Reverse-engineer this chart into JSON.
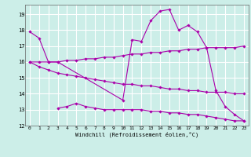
{
  "title": "",
  "xlabel": "Windchill (Refroidissement éolien,°C)",
  "background_color": "#cceee8",
  "grid_color": "#ffffff",
  "line_color": "#aa00aa",
  "xlim": [
    -0.5,
    23.5
  ],
  "ylim": [
    12,
    19.6
  ],
  "yticks": [
    12,
    13,
    14,
    15,
    16,
    17,
    18,
    19
  ],
  "xticks": [
    0,
    1,
    2,
    3,
    4,
    5,
    6,
    7,
    8,
    9,
    10,
    11,
    12,
    13,
    14,
    15,
    16,
    17,
    18,
    19,
    20,
    21,
    22,
    23
  ],
  "lines": [
    {
      "x": [
        0,
        1,
        2,
        3,
        10,
        11,
        12,
        13,
        14,
        15,
        16,
        17,
        18,
        19,
        20,
        21,
        22,
        23
      ],
      "y": [
        17.9,
        17.5,
        16.0,
        16.0,
        13.6,
        17.4,
        17.3,
        18.6,
        19.2,
        19.3,
        18.0,
        18.3,
        17.9,
        16.9,
        14.2,
        13.2,
        12.7,
        12.3
      ]
    },
    {
      "x": [
        0,
        1,
        2,
        3,
        4,
        5,
        6,
        7,
        8,
        9,
        10,
        11,
        12,
        13,
        14,
        15,
        16,
        17,
        18,
        19,
        20,
        21,
        22,
        23
      ],
      "y": [
        16.0,
        16.0,
        16.0,
        16.0,
        16.1,
        16.1,
        16.2,
        16.2,
        16.3,
        16.3,
        16.4,
        16.5,
        16.5,
        16.6,
        16.6,
        16.7,
        16.7,
        16.8,
        16.8,
        16.9,
        16.9,
        16.9,
        16.9,
        17.0
      ]
    },
    {
      "x": [
        0,
        1,
        2,
        3,
        4,
        5,
        6,
        7,
        8,
        9,
        10,
        11,
        12,
        13,
        14,
        15,
        16,
        17,
        18,
        19,
        20,
        21,
        22,
        23
      ],
      "y": [
        16.0,
        15.7,
        15.5,
        15.3,
        15.2,
        15.1,
        15.0,
        14.9,
        14.8,
        14.7,
        14.6,
        14.6,
        14.5,
        14.5,
        14.4,
        14.3,
        14.3,
        14.2,
        14.2,
        14.1,
        14.1,
        14.1,
        14.0,
        14.0
      ]
    },
    {
      "x": [
        3,
        4,
        5,
        6,
        7,
        8,
        9,
        10,
        11,
        12,
        13,
        14,
        15,
        16,
        17,
        18,
        19,
        20,
        21,
        22,
        23
      ],
      "y": [
        13.1,
        13.2,
        13.4,
        13.2,
        13.1,
        13.0,
        13.0,
        13.0,
        13.0,
        13.0,
        12.9,
        12.9,
        12.8,
        12.8,
        12.7,
        12.7,
        12.6,
        12.5,
        12.4,
        12.3,
        12.3
      ]
    }
  ]
}
